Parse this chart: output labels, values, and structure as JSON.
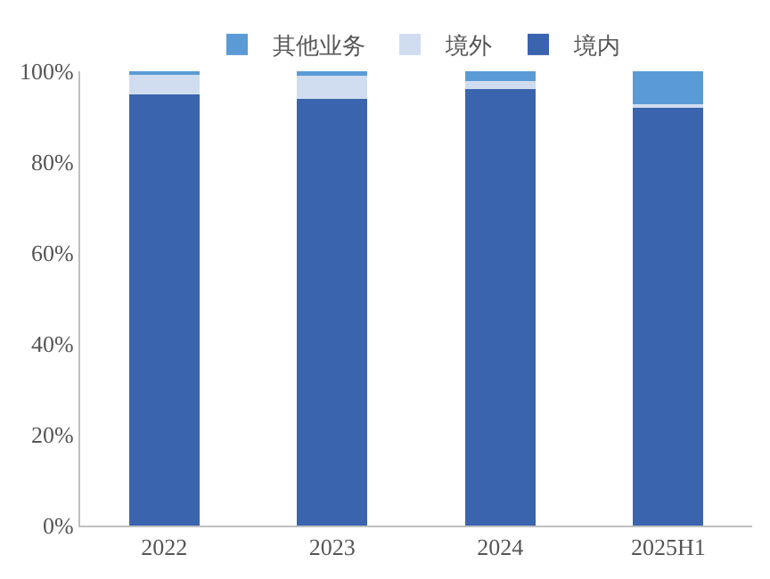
{
  "chart_data": {
    "type": "bar",
    "stacked": true,
    "categories": [
      "2022",
      "2023",
      "2024",
      "2025H1"
    ],
    "series": [
      {
        "name": "境内",
        "color": "#3a64ad",
        "values": [
          95,
          94,
          96,
          92
        ]
      },
      {
        "name": "境外",
        "color": "#d0ddf0",
        "values": [
          4.5,
          5,
          1.8,
          0.8
        ]
      },
      {
        "name": "其他业务",
        "color": "#5b9bd5",
        "values": [
          0.5,
          1,
          2.2,
          7.2
        ]
      }
    ],
    "ylim": [
      0,
      100
    ],
    "yticks": [
      {
        "value": 0,
        "label": "0%"
      },
      {
        "value": 20,
        "label": "20%"
      },
      {
        "value": 40,
        "label": "40%"
      },
      {
        "value": 60,
        "label": "60%"
      },
      {
        "value": 80,
        "label": "80%"
      },
      {
        "value": 100,
        "label": "100%"
      }
    ],
    "legend": "top"
  }
}
